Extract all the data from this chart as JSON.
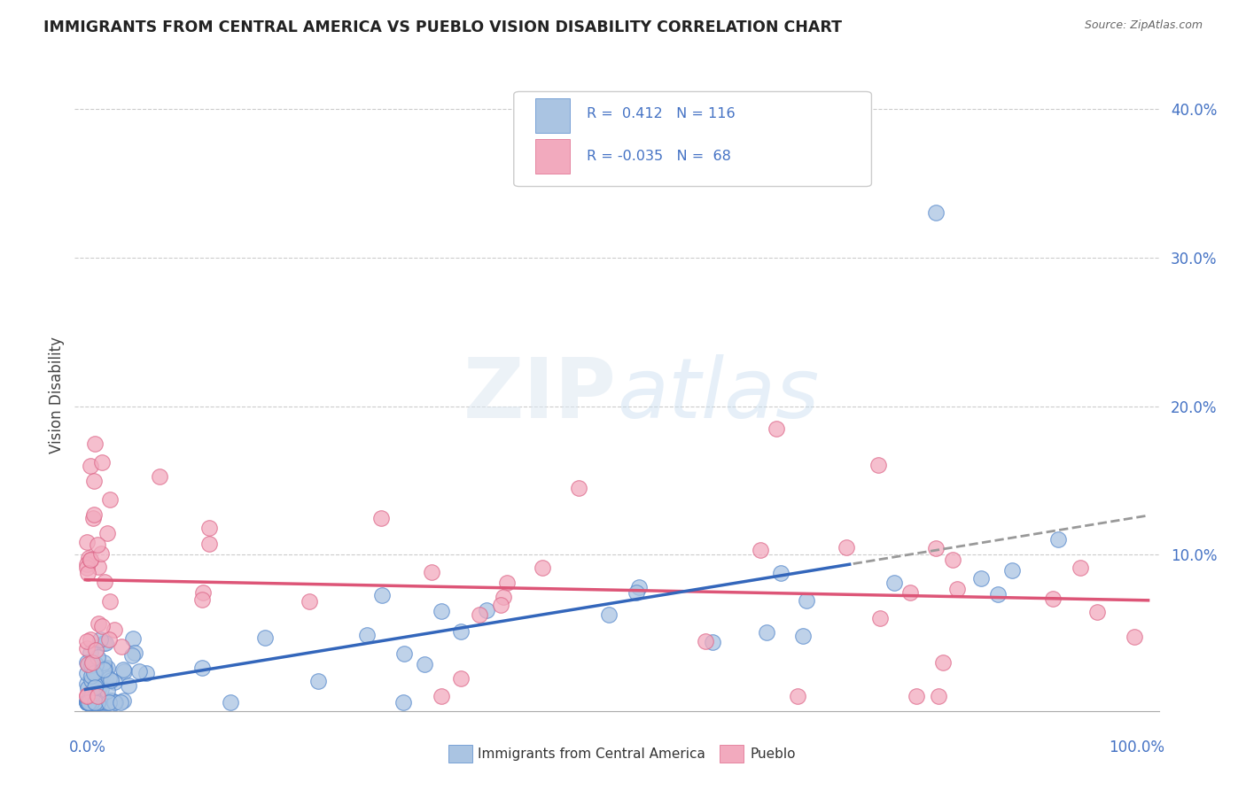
{
  "title": "IMMIGRANTS FROM CENTRAL AMERICA VS PUEBLO VISION DISABILITY CORRELATION CHART",
  "source": "Source: ZipAtlas.com",
  "ylabel": "Vision Disability",
  "legend_label1": "Immigrants from Central America",
  "legend_label2": "Pueblo",
  "r1": 0.412,
  "n1": 116,
  "r2": -0.035,
  "n2": 68,
  "color_blue": "#aac4e2",
  "color_pink": "#f2aabe",
  "edge_blue": "#5588cc",
  "edge_pink": "#dd6688",
  "line_blue": "#3366bb",
  "line_pink": "#dd5577",
  "line_dash": "#999999",
  "ylim_max": 0.42,
  "xlim_max": 1.0,
  "yticks": [
    0.0,
    0.1,
    0.2,
    0.3,
    0.4
  ],
  "ytick_labels": [
    "",
    "10.0%",
    "20.0%",
    "30.0%",
    "40.0%"
  ]
}
